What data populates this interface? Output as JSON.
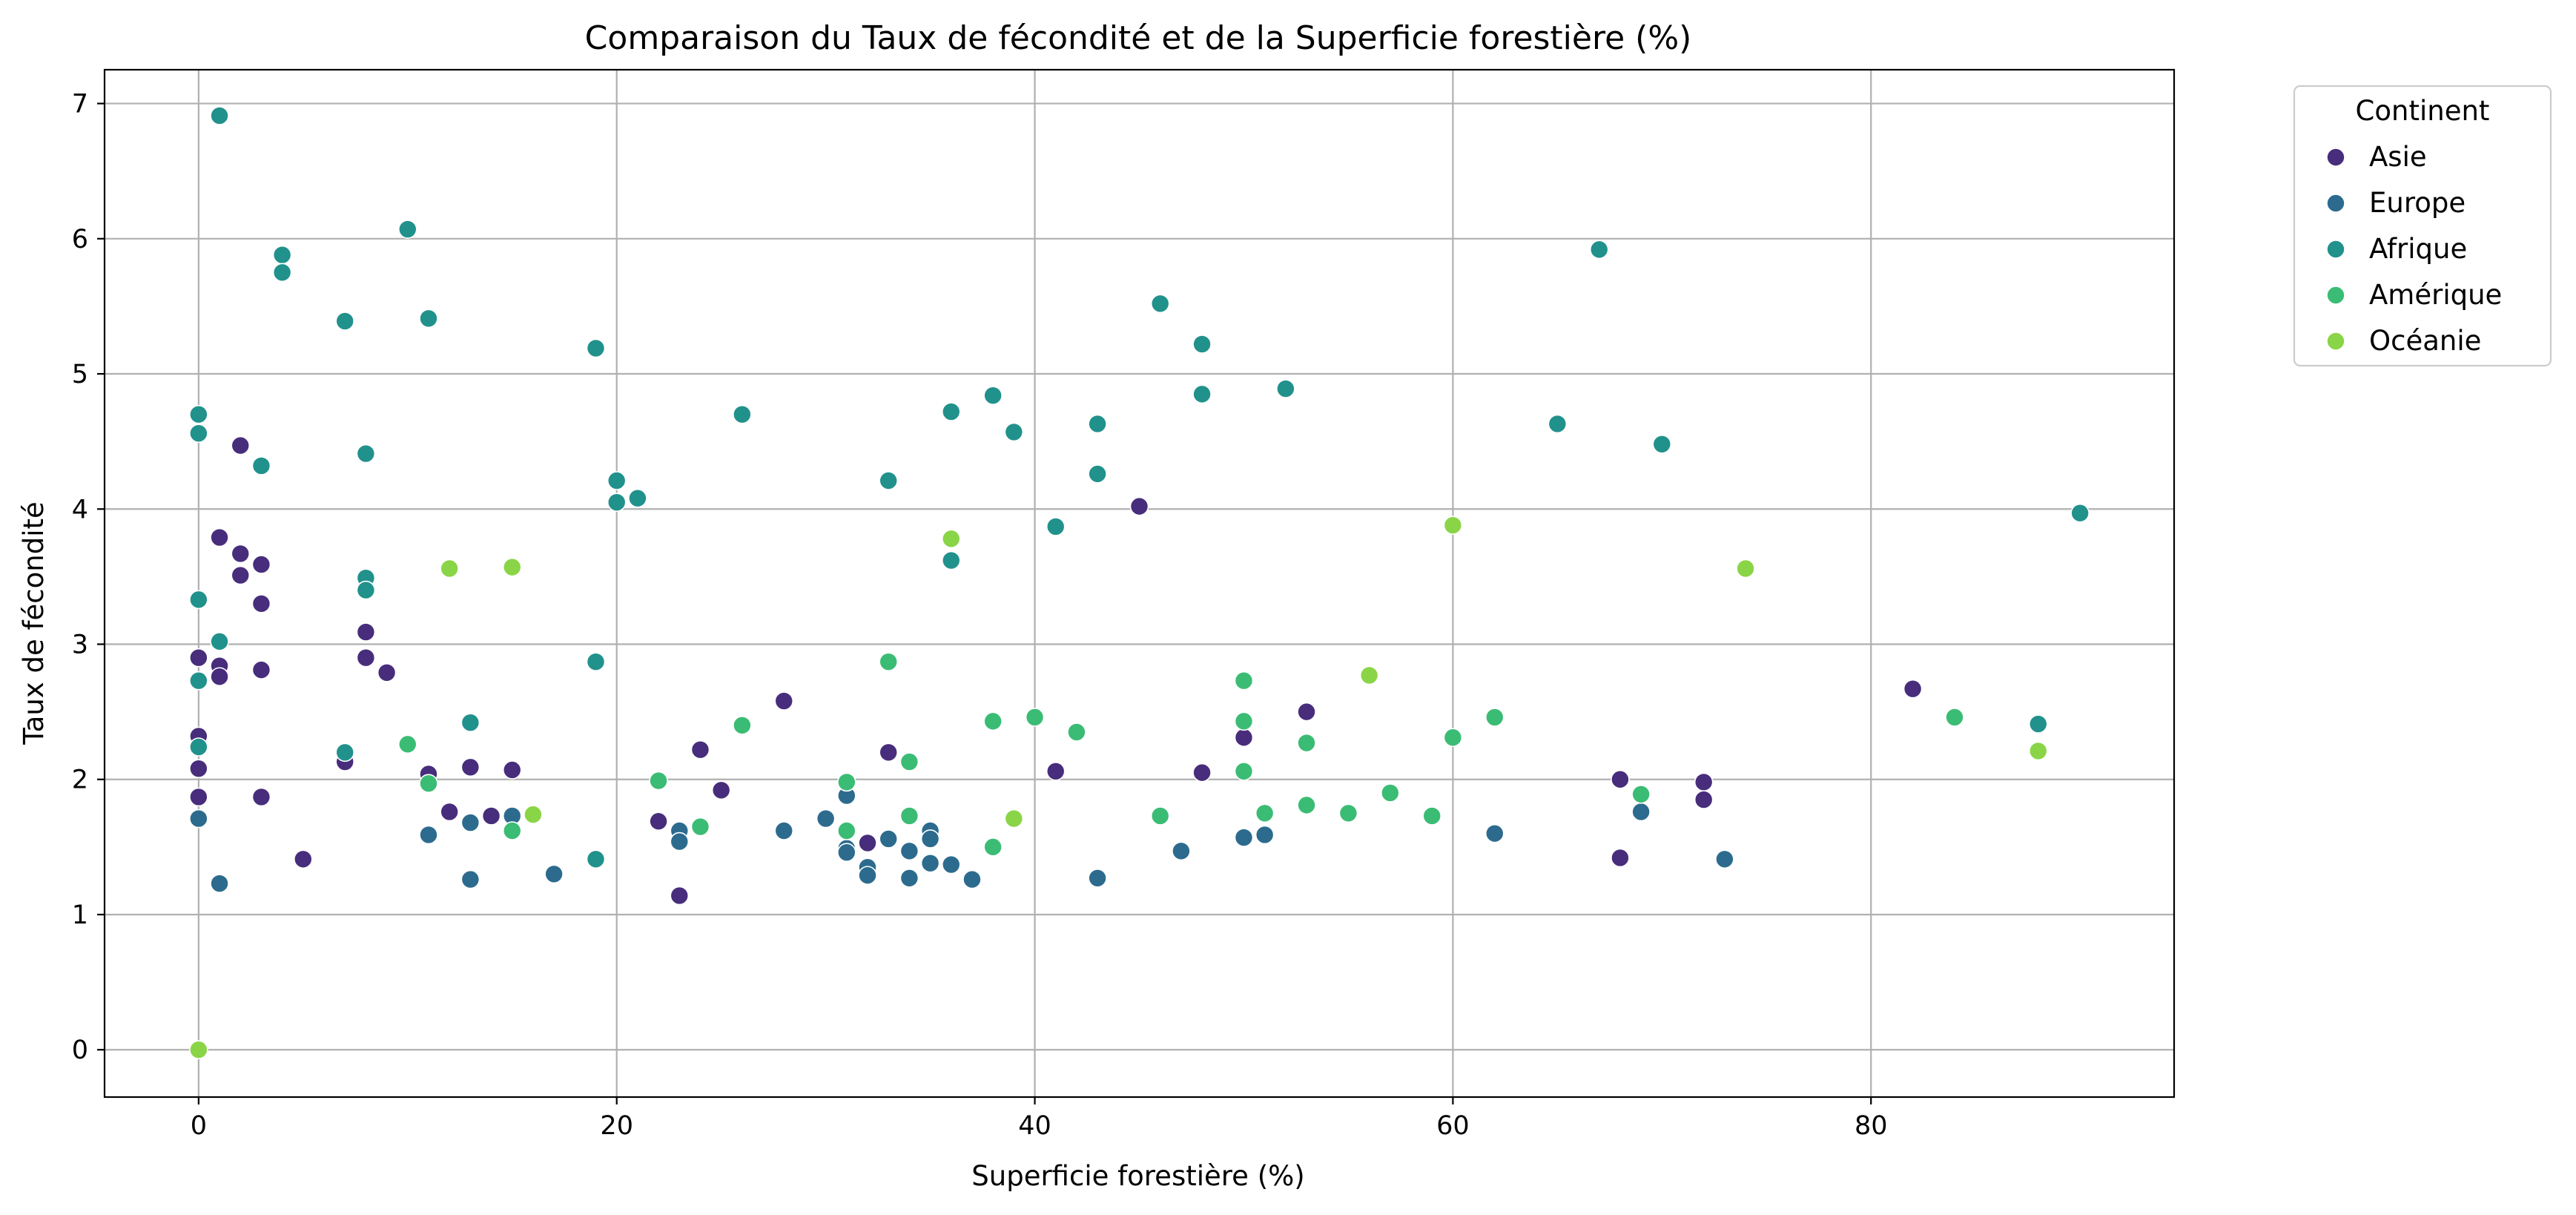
{
  "chart_data": {
    "type": "scatter",
    "title": "Comparaison du Taux de fécondité et de la Superficie forestière (%)",
    "xlabel": "Superficie forestière (%)",
    "ylabel": "Taux de fécondité",
    "xlim": [
      -4.5,
      94.5
    ],
    "ylim": [
      -0.35,
      7.25
    ],
    "xticks": [
      0,
      20,
      40,
      60,
      80
    ],
    "yticks": [
      0,
      1,
      2,
      3,
      4,
      5,
      6,
      7
    ],
    "grid": true,
    "legend": {
      "title": "Continent",
      "placement": "outside-top-right"
    },
    "series": [
      {
        "name": "Asie",
        "color": "#472d7b",
        "points": [
          [
            0,
            2.9
          ],
          [
            0,
            2.32
          ],
          [
            0,
            2.08
          ],
          [
            0,
            1.87
          ],
          [
            1,
            2.84
          ],
          [
            1,
            2.76
          ],
          [
            1,
            3.79
          ],
          [
            2,
            4.47
          ],
          [
            2,
            3.67
          ],
          [
            2,
            3.51
          ],
          [
            3,
            3.59
          ],
          [
            3,
            3.3
          ],
          [
            3,
            2.81
          ],
          [
            3,
            1.87
          ],
          [
            5,
            1.41
          ],
          [
            7,
            2.13
          ],
          [
            8,
            3.09
          ],
          [
            8,
            2.9
          ],
          [
            9,
            2.79
          ],
          [
            11,
            2.04
          ],
          [
            12,
            1.76
          ],
          [
            13,
            2.09
          ],
          [
            14,
            1.73
          ],
          [
            15,
            2.07
          ],
          [
            22,
            1.69
          ],
          [
            23,
            1.14
          ],
          [
            24,
            2.22
          ],
          [
            25,
            1.92
          ],
          [
            28,
            2.58
          ],
          [
            32,
            1.53
          ],
          [
            33,
            2.2
          ],
          [
            41,
            2.06
          ],
          [
            45,
            4.02
          ],
          [
            48,
            2.05
          ],
          [
            50,
            2.31
          ],
          [
            53,
            2.5
          ],
          [
            68,
            2.0
          ],
          [
            68,
            1.42
          ],
          [
            72,
            1.98
          ],
          [
            72,
            1.85
          ],
          [
            82,
            2.67
          ]
        ]
      },
      {
        "name": "Europe",
        "color": "#2c6b8e",
        "points": [
          [
            0,
            1.71
          ],
          [
            1,
            1.23
          ],
          [
            11,
            1.59
          ],
          [
            13,
            1.68
          ],
          [
            13,
            1.26
          ],
          [
            15,
            1.73
          ],
          [
            17,
            1.3
          ],
          [
            23,
            1.62
          ],
          [
            23,
            1.54
          ],
          [
            28,
            1.62
          ],
          [
            30,
            1.71
          ],
          [
            31,
            1.88
          ],
          [
            31,
            1.49
          ],
          [
            31,
            1.46
          ],
          [
            32,
            1.35
          ],
          [
            32,
            1.29
          ],
          [
            33,
            1.56
          ],
          [
            34,
            1.47
          ],
          [
            34,
            1.27
          ],
          [
            35,
            1.62
          ],
          [
            35,
            1.56
          ],
          [
            35,
            1.38
          ],
          [
            36,
            1.37
          ],
          [
            37,
            1.26
          ],
          [
            43,
            1.27
          ],
          [
            47,
            1.47
          ],
          [
            50,
            1.57
          ],
          [
            51,
            1.59
          ],
          [
            62,
            1.6
          ],
          [
            69,
            1.76
          ],
          [
            73,
            1.41
          ]
        ]
      },
      {
        "name": "Afrique",
        "color": "#21918c",
        "points": [
          [
            0,
            4.7
          ],
          [
            0,
            4.56
          ],
          [
            0,
            3.33
          ],
          [
            0,
            2.73
          ],
          [
            0,
            2.24
          ],
          [
            1,
            6.91
          ],
          [
            1,
            3.02
          ],
          [
            3,
            4.32
          ],
          [
            4,
            5.88
          ],
          [
            4,
            5.75
          ],
          [
            7,
            5.39
          ],
          [
            7,
            2.2
          ],
          [
            8,
            4.41
          ],
          [
            8,
            3.49
          ],
          [
            8,
            3.4
          ],
          [
            10,
            6.07
          ],
          [
            11,
            5.41
          ],
          [
            13,
            2.42
          ],
          [
            19,
            5.19
          ],
          [
            19,
            2.87
          ],
          [
            19,
            1.41
          ],
          [
            20,
            4.21
          ],
          [
            20,
            4.05
          ],
          [
            21,
            4.08
          ],
          [
            26,
            4.7
          ],
          [
            33,
            4.21
          ],
          [
            36,
            4.72
          ],
          [
            36,
            3.62
          ],
          [
            38,
            4.84
          ],
          [
            39,
            4.57
          ],
          [
            41,
            3.87
          ],
          [
            43,
            4.63
          ],
          [
            43,
            4.26
          ],
          [
            46,
            5.52
          ],
          [
            48,
            5.22
          ],
          [
            48,
            4.85
          ],
          [
            52,
            4.89
          ],
          [
            65,
            4.63
          ],
          [
            67,
            5.92
          ],
          [
            70,
            4.48
          ],
          [
            88,
            2.41
          ],
          [
            90,
            3.97
          ]
        ]
      },
      {
        "name": "Amérique",
        "color": "#3bbc74",
        "points": [
          [
            10,
            2.26
          ],
          [
            11,
            1.97
          ],
          [
            15,
            1.62
          ],
          [
            22,
            1.99
          ],
          [
            24,
            1.65
          ],
          [
            26,
            2.4
          ],
          [
            31,
            1.98
          ],
          [
            31,
            1.62
          ],
          [
            33,
            2.87
          ],
          [
            34,
            2.13
          ],
          [
            34,
            1.73
          ],
          [
            38,
            2.43
          ],
          [
            38,
            1.5
          ],
          [
            40,
            2.46
          ],
          [
            42,
            2.35
          ],
          [
            46,
            1.73
          ],
          [
            50,
            2.73
          ],
          [
            50,
            2.43
          ],
          [
            50,
            2.06
          ],
          [
            51,
            1.75
          ],
          [
            53,
            2.27
          ],
          [
            53,
            1.81
          ],
          [
            55,
            1.75
          ],
          [
            57,
            1.9
          ],
          [
            59,
            1.73
          ],
          [
            60,
            2.31
          ],
          [
            62,
            2.46
          ],
          [
            69,
            1.89
          ],
          [
            84,
            2.46
          ]
        ]
      },
      {
        "name": "Océanie",
        "color": "#8ad547",
        "points": [
          [
            0,
            0.0
          ],
          [
            12,
            3.56
          ],
          [
            15,
            3.57
          ],
          [
            16,
            1.74
          ],
          [
            36,
            3.78
          ],
          [
            39,
            1.71
          ],
          [
            56,
            2.77
          ],
          [
            60,
            3.88
          ],
          [
            74,
            3.56
          ],
          [
            88,
            2.21
          ]
        ]
      }
    ]
  }
}
